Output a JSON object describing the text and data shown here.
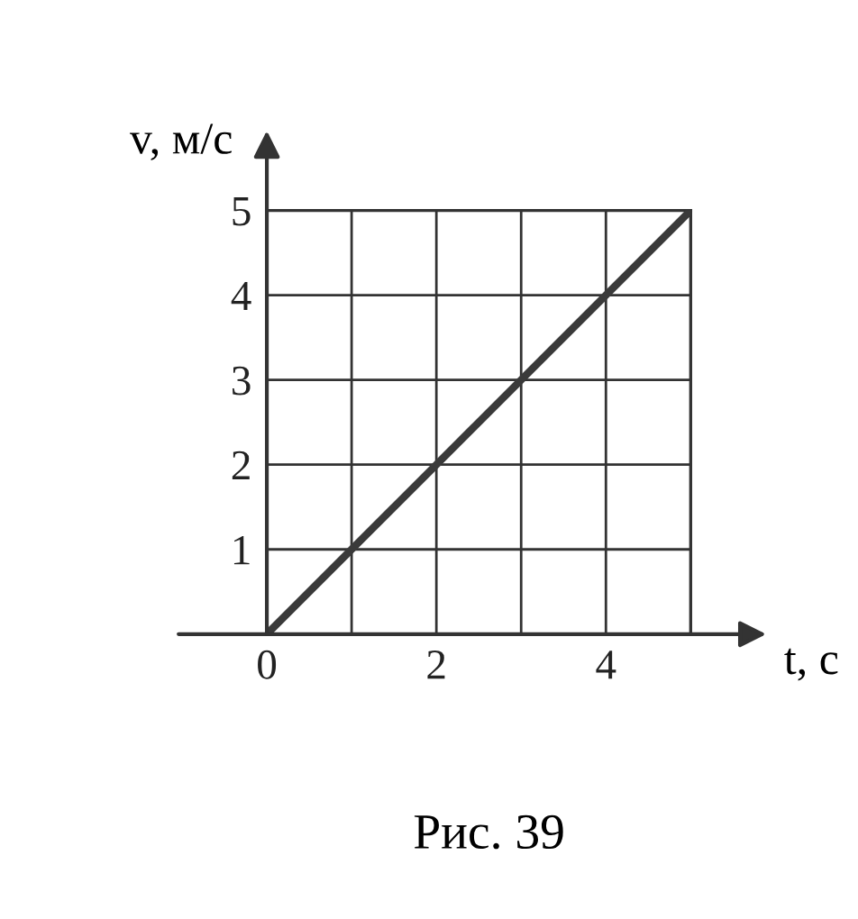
{
  "chart_data": {
    "type": "line",
    "xlabel": "t, с",
    "ylabel": "v, м/с",
    "x": [
      0,
      5
    ],
    "series": [
      {
        "color": "#3a3a3a",
        "values": [
          0,
          5
        ]
      }
    ],
    "xlim": [
      0,
      5
    ],
    "ylim": [
      0,
      5
    ],
    "xticks": [
      0,
      {
        "value": 1,
        "label": null
      },
      2,
      {
        "value": 3,
        "label": null
      },
      4,
      {
        "value": 5,
        "label": null
      }
    ],
    "yticks": [
      1,
      2,
      3,
      4,
      5
    ],
    "grid": true,
    "legend": false,
    "marker": "none",
    "line_style": "solid",
    "annotations": [
      "Рис. 39"
    ]
  }
}
